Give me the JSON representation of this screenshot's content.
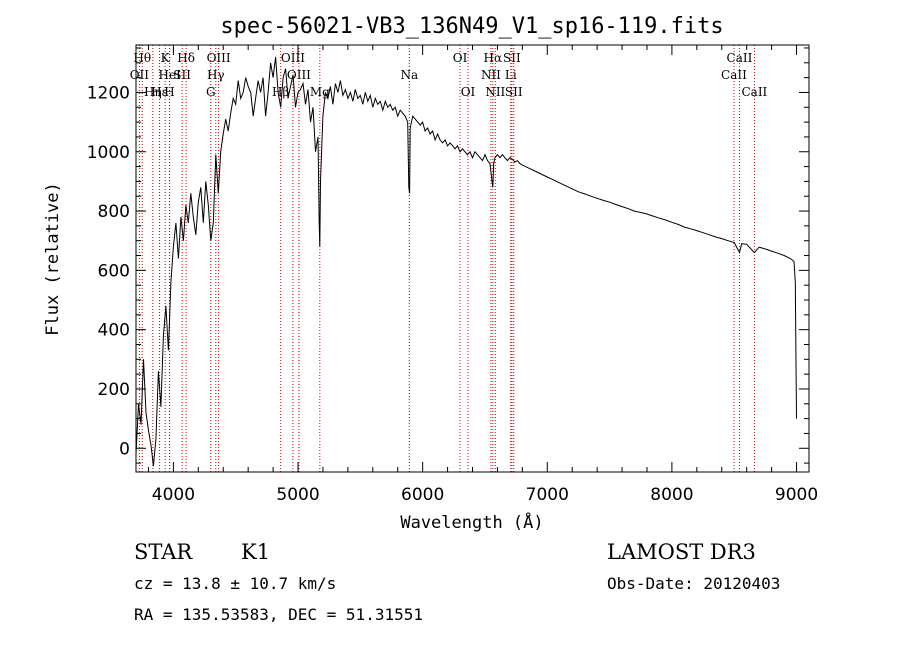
{
  "chart_data": {
    "type": "line",
    "title": "spec-56021-VB3_136N49_V1_sp16-119.fits",
    "xlabel": "Wavelength (Å)",
    "ylabel": "Flux (relative)",
    "xlim": [
      3700,
      9100
    ],
    "ylim": [
      -80,
      1360
    ],
    "xticks": [
      4000,
      5000,
      6000,
      7000,
      8000,
      9000
    ],
    "yticks": [
      0,
      200,
      400,
      600,
      800,
      1000,
      1200
    ],
    "series": [
      {
        "name": "spectrum",
        "points": [
          [
            3700,
            -20
          ],
          [
            3720,
            150
          ],
          [
            3740,
            80
          ],
          [
            3760,
            300
          ],
          [
            3780,
            120
          ],
          [
            3800,
            60
          ],
          [
            3820,
            10
          ],
          [
            3840,
            -60
          ],
          [
            3860,
            30
          ],
          [
            3880,
            260
          ],
          [
            3900,
            140
          ],
          [
            3920,
            380
          ],
          [
            3940,
            480
          ],
          [
            3960,
            330
          ],
          [
            3980,
            560
          ],
          [
            4000,
            680
          ],
          [
            4020,
            760
          ],
          [
            4040,
            640
          ],
          [
            4060,
            780
          ],
          [
            4080,
            700
          ],
          [
            4100,
            820
          ],
          [
            4120,
            760
          ],
          [
            4140,
            860
          ],
          [
            4160,
            780
          ],
          [
            4180,
            720
          ],
          [
            4200,
            830
          ],
          [
            4220,
            880
          ],
          [
            4240,
            760
          ],
          [
            4260,
            900
          ],
          [
            4280,
            820
          ],
          [
            4300,
            700
          ],
          [
            4320,
            760
          ],
          [
            4340,
            990
          ],
          [
            4360,
            860
          ],
          [
            4380,
            1000
          ],
          [
            4400,
            1060
          ],
          [
            4420,
            1110
          ],
          [
            4440,
            1070
          ],
          [
            4460,
            1130
          ],
          [
            4480,
            1180
          ],
          [
            4500,
            1160
          ],
          [
            4520,
            1240
          ],
          [
            4540,
            1180
          ],
          [
            4560,
            1200
          ],
          [
            4580,
            1250
          ],
          [
            4600,
            1220
          ],
          [
            4620,
            1200
          ],
          [
            4640,
            1120
          ],
          [
            4660,
            1180
          ],
          [
            4680,
            1240
          ],
          [
            4700,
            1200
          ],
          [
            4720,
            1250
          ],
          [
            4740,
            1120
          ],
          [
            4760,
            1200
          ],
          [
            4780,
            1300
          ],
          [
            4800,
            1250
          ],
          [
            4820,
            1320
          ],
          [
            4840,
            1200
          ],
          [
            4861,
            1150
          ],
          [
            4880,
            1250
          ],
          [
            4900,
            1280
          ],
          [
            4920,
            1180
          ],
          [
            4940,
            1220
          ],
          [
            4960,
            1260
          ],
          [
            4980,
            1150
          ],
          [
            5000,
            1200
          ],
          [
            5020,
            1210
          ],
          [
            5040,
            1230
          ],
          [
            5060,
            1160
          ],
          [
            5080,
            1210
          ],
          [
            5100,
            1100
          ],
          [
            5120,
            1150
          ],
          [
            5140,
            1000
          ],
          [
            5160,
            1050
          ],
          [
            5170,
            760
          ],
          [
            5175,
            680
          ],
          [
            5180,
            900
          ],
          [
            5200,
            1120
          ],
          [
            5220,
            1200
          ],
          [
            5240,
            1180
          ],
          [
            5260,
            1220
          ],
          [
            5280,
            1160
          ],
          [
            5300,
            1230
          ],
          [
            5320,
            1200
          ],
          [
            5340,
            1240
          ],
          [
            5360,
            1190
          ],
          [
            5380,
            1210
          ],
          [
            5400,
            1180
          ],
          [
            5420,
            1200
          ],
          [
            5440,
            1170
          ],
          [
            5460,
            1210
          ],
          [
            5480,
            1180
          ],
          [
            5500,
            1190
          ],
          [
            5520,
            1160
          ],
          [
            5540,
            1200
          ],
          [
            5560,
            1170
          ],
          [
            5580,
            1190
          ],
          [
            5600,
            1150
          ],
          [
            5620,
            1180
          ],
          [
            5640,
            1160
          ],
          [
            5660,
            1170
          ],
          [
            5680,
            1140
          ],
          [
            5700,
            1170
          ],
          [
            5720,
            1150
          ],
          [
            5740,
            1160
          ],
          [
            5760,
            1140
          ],
          [
            5780,
            1150
          ],
          [
            5800,
            1120
          ],
          [
            5820,
            1140
          ],
          [
            5840,
            1130
          ],
          [
            5860,
            1120
          ],
          [
            5880,
            1100
          ],
          [
            5889,
            880
          ],
          [
            5895,
            860
          ],
          [
            5900,
            1080
          ],
          [
            5920,
            1120
          ],
          [
            5940,
            1110
          ],
          [
            5960,
            1100
          ],
          [
            5980,
            1090
          ],
          [
            6000,
            1100
          ],
          [
            6020,
            1070
          ],
          [
            6040,
            1080
          ],
          [
            6060,
            1060
          ],
          [
            6080,
            1070
          ],
          [
            6100,
            1040
          ],
          [
            6120,
            1060
          ],
          [
            6140,
            1040
          ],
          [
            6160,
            1030
          ],
          [
            6180,
            1040
          ],
          [
            6200,
            1020
          ],
          [
            6220,
            1030
          ],
          [
            6240,
            1020
          ],
          [
            6260,
            1010
          ],
          [
            6280,
            1020
          ],
          [
            6300,
            1000
          ],
          [
            6320,
            1010
          ],
          [
            6340,
            1000
          ],
          [
            6360,
            990
          ],
          [
            6380,
            1000
          ],
          [
            6400,
            980
          ],
          [
            6420,
            1000
          ],
          [
            6440,
            990
          ],
          [
            6460,
            980
          ],
          [
            6480,
            970
          ],
          [
            6500,
            990
          ],
          [
            6520,
            970
          ],
          [
            6540,
            960
          ],
          [
            6563,
            880
          ],
          [
            6570,
            960
          ],
          [
            6580,
            980
          ],
          [
            6600,
            990
          ],
          [
            6620,
            980
          ],
          [
            6640,
            990
          ],
          [
            6660,
            980
          ],
          [
            6680,
            970
          ],
          [
            6700,
            980
          ],
          [
            6720,
            975
          ],
          [
            6740,
            965
          ],
          [
            6760,
            970
          ],
          [
            6780,
            960
          ],
          [
            6800,
            955
          ],
          [
            6850,
            945
          ],
          [
            6900,
            935
          ],
          [
            6950,
            925
          ],
          [
            7000,
            915
          ],
          [
            7050,
            905
          ],
          [
            7100,
            895
          ],
          [
            7150,
            885
          ],
          [
            7200,
            875
          ],
          [
            7250,
            865
          ],
          [
            7300,
            858
          ],
          [
            7350,
            850
          ],
          [
            7400,
            843
          ],
          [
            7450,
            836
          ],
          [
            7500,
            830
          ],
          [
            7550,
            822
          ],
          [
            7600,
            815
          ],
          [
            7650,
            808
          ],
          [
            7700,
            800
          ],
          [
            7750,
            795
          ],
          [
            7800,
            790
          ],
          [
            7850,
            783
          ],
          [
            7900,
            776
          ],
          [
            7950,
            770
          ],
          [
            8000,
            762
          ],
          [
            8050,
            755
          ],
          [
            8100,
            746
          ],
          [
            8150,
            740
          ],
          [
            8200,
            734
          ],
          [
            8250,
            727
          ],
          [
            8300,
            720
          ],
          [
            8350,
            713
          ],
          [
            8400,
            707
          ],
          [
            8450,
            700
          ],
          [
            8500,
            694
          ],
          [
            8542,
            660
          ],
          [
            8560,
            690
          ],
          [
            8600,
            688
          ],
          [
            8662,
            660
          ],
          [
            8700,
            678
          ],
          [
            8750,
            672
          ],
          [
            8800,
            665
          ],
          [
            8850,
            658
          ],
          [
            8900,
            650
          ],
          [
            8950,
            640
          ],
          [
            8980,
            630
          ],
          [
            8990,
            560
          ],
          [
            9000,
            100
          ]
        ]
      }
    ],
    "line_markers": [
      {
        "wave": 3750,
        "label": "Hθ",
        "row": 1
      },
      {
        "wave": 3727,
        "label": "OII",
        "row": 2
      },
      {
        "wave": 3835,
        "label": "Hη",
        "row": 3
      },
      {
        "wave": 3889,
        "label": "Hε",
        "row": 3
      },
      {
        "wave": 3934,
        "label": "K",
        "row": 1
      },
      {
        "wave": 3969,
        "label": "H",
        "row": 3
      },
      {
        "wave": 3970,
        "label": "HeI",
        "row": 2
      },
      {
        "wave": 4070,
        "label": "SII",
        "row": 2
      },
      {
        "wave": 4102,
        "label": "Hδ",
        "row": 1
      },
      {
        "wave": 4300,
        "label": "G",
        "row": 3
      },
      {
        "wave": 4340,
        "label": "Hγ",
        "row": 2
      },
      {
        "wave": 4363,
        "label": "OIII",
        "row": 1
      },
      {
        "wave": 4861,
        "label": "Hβ",
        "row": 3
      },
      {
        "wave": 4959,
        "label": "OIII",
        "row": 1
      },
      {
        "wave": 5007,
        "label": "OIII",
        "row": 2
      },
      {
        "wave": 5175,
        "label": "Mg",
        "row": 3
      },
      {
        "wave": 5893,
        "label": "Na",
        "row": 2
      },
      {
        "wave": 6300,
        "label": "OI",
        "row": 1
      },
      {
        "wave": 6364,
        "label": "OI",
        "row": 3
      },
      {
        "wave": 6548,
        "label": "NII",
        "row": 2
      },
      {
        "wave": 6563,
        "label": "Hα",
        "row": 1
      },
      {
        "wave": 6583,
        "label": "NII",
        "row": 3
      },
      {
        "wave": 6707,
        "label": "Li",
        "row": 2
      },
      {
        "wave": 6716,
        "label": "SII",
        "row": 1
      },
      {
        "wave": 6731,
        "label": "SII",
        "row": 3
      },
      {
        "wave": 8498,
        "label": "CaII",
        "row": 2
      },
      {
        "wave": 8542,
        "label": "CaII",
        "row": 1
      },
      {
        "wave": 8662,
        "label": "CaII",
        "row": 3
      }
    ]
  },
  "info": {
    "class": "STAR",
    "subclass": "K1",
    "survey": "LAMOST DR3",
    "cz": "cz = 13.8 ± 10.7 km/s",
    "obs_date": "Obs-Date: 20120403",
    "coords": "RA = 135.53583, DEC =  51.31551"
  },
  "colors": {
    "marker": "#cc0000",
    "spectrum": "#000000"
  }
}
